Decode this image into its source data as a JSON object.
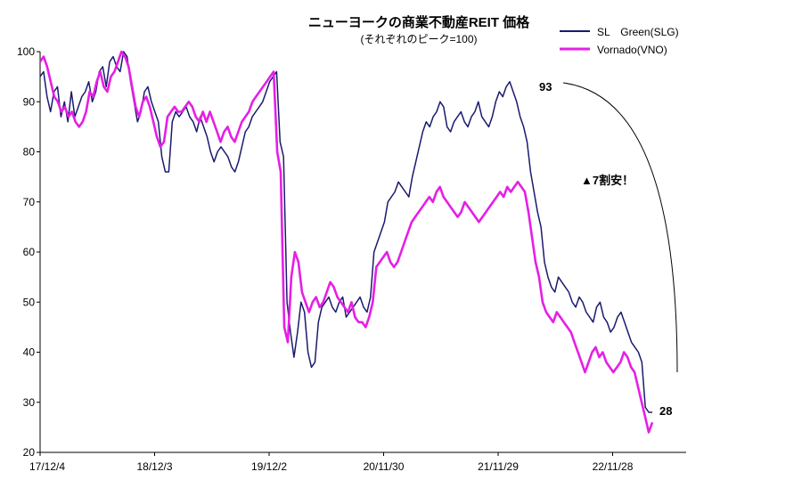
{
  "chart_data": {
    "type": "line",
    "title": "ニューヨークの商業不動産REIT 価格",
    "subtitle": "(それぞれのピーク=100)",
    "xlabel": "",
    "ylabel": "",
    "ylim": [
      20,
      100
    ],
    "yticks": [
      20,
      30,
      40,
      50,
      60,
      70,
      80,
      90,
      100
    ],
    "xticks": [
      "17/12/4",
      "18/12/3",
      "19/12/2",
      "20/11/30",
      "21/11/29",
      "22/11/28"
    ],
    "grid": false,
    "legend_position": "top-right",
    "colors": {
      "SLG": "#1a1a6e",
      "VNO": "#e61ee6"
    },
    "annotations": {
      "peak_value": "93",
      "end_value": "28",
      "note": "▲7割安！"
    },
    "series": [
      {
        "name": "SL　Green(SLG)",
        "key": "SLG",
        "values": [
          95,
          96,
          91,
          88,
          92,
          93,
          87,
          90,
          86,
          92,
          87,
          89,
          91,
          92,
          94,
          90,
          92,
          96,
          97,
          93,
          98,
          99,
          97,
          96,
          100,
          99,
          94,
          90,
          86,
          88,
          92,
          93,
          90,
          88,
          86,
          79,
          76,
          76,
          86,
          88,
          87,
          88,
          89,
          87,
          86,
          84,
          87,
          85,
          83,
          80,
          78,
          80,
          81,
          80,
          79,
          77,
          76,
          78,
          81,
          84,
          85,
          87,
          88,
          89,
          90,
          92,
          94,
          95,
          96,
          82,
          79,
          50,
          44,
          39,
          44,
          50,
          48,
          40,
          37,
          38,
          46,
          49,
          50,
          51,
          49,
          48,
          50,
          51,
          47,
          48,
          49,
          50,
          51,
          49,
          48,
          51,
          60,
          62,
          64,
          66,
          70,
          71,
          72,
          74,
          73,
          72,
          71,
          75,
          78,
          81,
          84,
          86,
          85,
          87,
          88,
          90,
          89,
          85,
          84,
          86,
          87,
          88,
          86,
          85,
          87,
          88,
          90,
          87,
          86,
          85,
          87,
          90,
          92,
          91,
          93,
          94,
          92,
          90,
          87,
          85,
          82,
          76,
          72,
          68,
          65,
          58,
          55,
          53,
          52,
          55,
          54,
          53,
          52,
          50,
          49,
          51,
          50,
          48,
          47,
          46,
          49,
          50,
          47,
          46,
          44,
          45,
          47,
          48,
          46,
          44,
          42,
          41,
          40,
          38,
          29,
          28,
          28
        ]
      },
      {
        "name": "Vornado(VNO)",
        "key": "VNO",
        "values": [
          98,
          99,
          97,
          94,
          91,
          90,
          88,
          89,
          87,
          88,
          86,
          85,
          86,
          88,
          92,
          91,
          94,
          96,
          93,
          92,
          95,
          96,
          98,
          100,
          99,
          97,
          93,
          89,
          87,
          90,
          91,
          89,
          86,
          83,
          81,
          82,
          87,
          88,
          89,
          88,
          88,
          89,
          90,
          89,
          87,
          86,
          88,
          86,
          88,
          86,
          84,
          82,
          84,
          85,
          83,
          82,
          84,
          86,
          87,
          88,
          90,
          91,
          92,
          93,
          94,
          95,
          96,
          80,
          76,
          45,
          42,
          55,
          60,
          58,
          52,
          50,
          48,
          50,
          51,
          49,
          50,
          52,
          54,
          53,
          51,
          50,
          49,
          48,
          50,
          47,
          46,
          46,
          45,
          47,
          50,
          57,
          58,
          59,
          60,
          58,
          57,
          58,
          60,
          62,
          64,
          66,
          67,
          68,
          69,
          70,
          71,
          70,
          72,
          73,
          71,
          70,
          69,
          68,
          67,
          68,
          70,
          69,
          68,
          67,
          66,
          67,
          68,
          69,
          70,
          71,
          72,
          71,
          73,
          72,
          73,
          74,
          73,
          72,
          68,
          63,
          58,
          55,
          50,
          48,
          47,
          46,
          48,
          47,
          46,
          45,
          44,
          42,
          40,
          38,
          36,
          38,
          40,
          41,
          39,
          40,
          38,
          37,
          36,
          37,
          38,
          40,
          39,
          37,
          36,
          33,
          30,
          27,
          24,
          26
        ]
      }
    ]
  }
}
